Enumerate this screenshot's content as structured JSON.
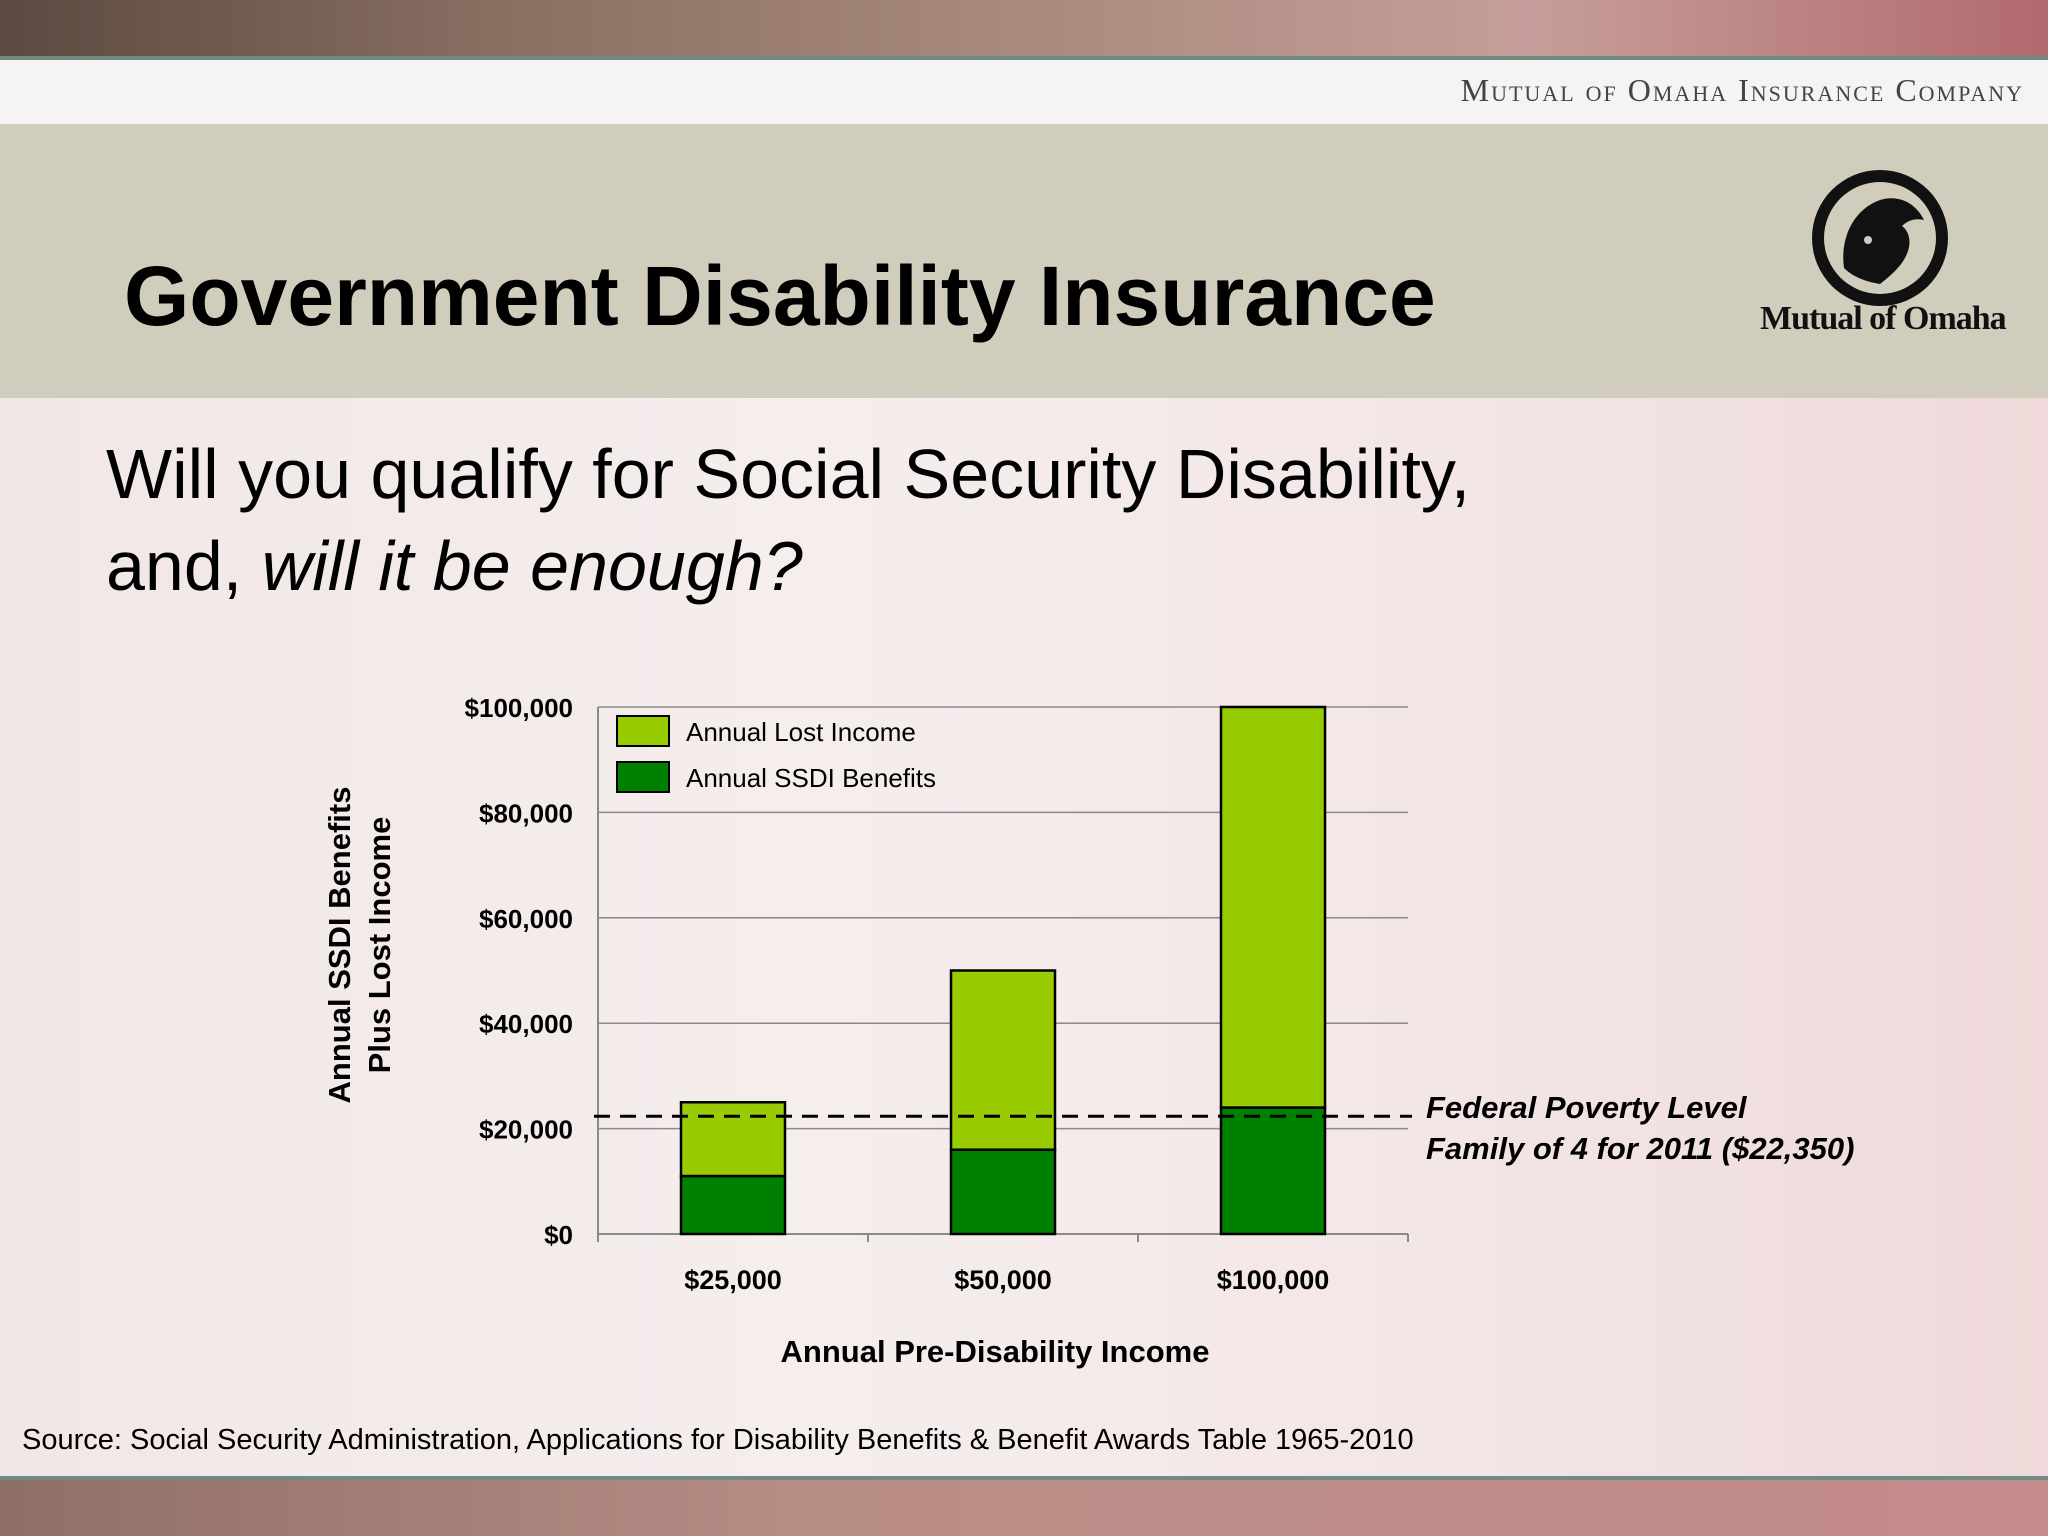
{
  "header": {
    "company_name": "Mutual of Omaha Insurance Company",
    "logo_word": "Mutual of Omaha"
  },
  "slide": {
    "title": "Government Disability Insurance",
    "question_line1": "Will you qualify for Social Security Disability,",
    "question_line2_prefix": "and, ",
    "question_line2_emphasis": "will it be enough?",
    "source": "Source: Social Security Administration, Applications for Disability Benefits & Benefit Awards Table 1965-2010"
  },
  "colors": {
    "lost_income": "#99cc00",
    "ssdi_benefits": "#008000",
    "title_band": "#d1cdbd"
  },
  "chart_data": {
    "type": "bar",
    "stacked": true,
    "categories": [
      "$25,000",
      "$50,000",
      "$100,000"
    ],
    "series": [
      {
        "name": "Annual SSDI Benefits",
        "values": [
          11000,
          16000,
          24000
        ],
        "color": "#008000"
      },
      {
        "name": "Annual Lost Income",
        "values": [
          14000,
          34000,
          76000
        ],
        "color": "#99cc00"
      }
    ],
    "legend_order": [
      "Annual Lost Income",
      "Annual SSDI Benefits"
    ],
    "legend_position": "top-left",
    "xlabel": "Annual Pre-Disability Income",
    "ylabel_line1": "Annual SSDI Benefits",
    "ylabel_line2": "Plus Lost Income",
    "ylim": [
      0,
      100000
    ],
    "yticks": [
      {
        "value": 0,
        "label": "$0"
      },
      {
        "value": 20000,
        "label": "$20,000"
      },
      {
        "value": 40000,
        "label": "$40,000"
      },
      {
        "value": 60000,
        "label": "$60,000"
      },
      {
        "value": 80000,
        "label": "$80,000"
      },
      {
        "value": 100000,
        "label": "$100,000"
      }
    ],
    "gridlines": true,
    "reference_line": {
      "value": 22350,
      "style": "dashed",
      "label_line1": "Federal Poverty Level",
      "label_line2": "Family of 4 for 2011 ($22,350)"
    }
  }
}
